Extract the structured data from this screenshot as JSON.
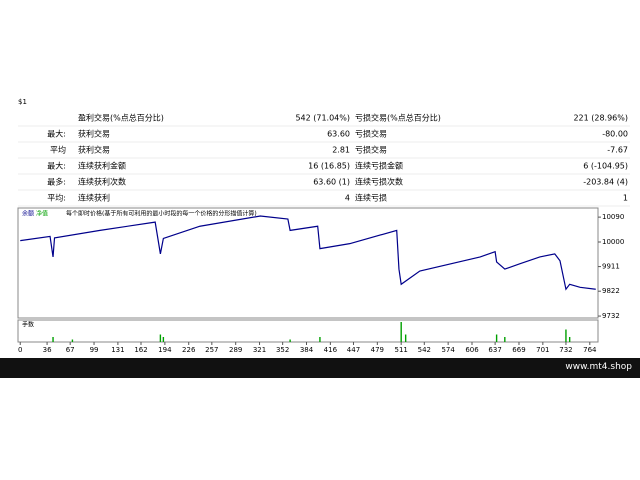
{
  "header": {
    "mark": "$1"
  },
  "stats": {
    "rows": [
      [
        "",
        "盈利交易(%点总百分比)",
        "542 (71.04%)",
        "亏损交易(%点总百分比)",
        "221 (28.96%)"
      ],
      [
        "最大:",
        "获利交易",
        "63.60",
        "亏损交易",
        "-80.00"
      ],
      [
        "平均",
        "获利交易",
        "2.81",
        "亏损交易",
        "-7.67"
      ],
      [
        "最大:",
        "连续获利金额",
        "16 (16.85)",
        "连续亏损金额",
        "6 (-104.95)"
      ],
      [
        "最多:",
        "连续获利次数",
        "63.60 (1)",
        "连续亏损次数",
        "-203.84 (4)"
      ],
      [
        "平均:",
        "连续获利",
        "4",
        "连续亏损",
        "1"
      ]
    ]
  },
  "chart": {
    "legend": [
      "余额",
      "净值",
      "每个即时价格(基于所有可利用的最小时段的每一个价格的分形描值计算)"
    ],
    "volume_label": "手数",
    "xlim": [
      -3,
      775
    ],
    "xticks": [
      0,
      36,
      67,
      99,
      131,
      162,
      194,
      226,
      257,
      289,
      321,
      352,
      384,
      416,
      447,
      479,
      511,
      542,
      574,
      606,
      637,
      669,
      701,
      732,
      764
    ],
    "ylim": [
      9725,
      10123
    ],
    "yticks": [
      10090,
      10000,
      9911,
      9822,
      9732
    ],
    "balance": {
      "color": "#00008b",
      "x": [
        0,
        40,
        44,
        46,
        107,
        181,
        188,
        192,
        241,
        322,
        359,
        362,
        399,
        402,
        442,
        505,
        508,
        511,
        536,
        617,
        637,
        639,
        650,
        670,
        697,
        717,
        724,
        732,
        737,
        751,
        772
      ],
      "values": [
        10005,
        10020,
        9946,
        10015,
        10042,
        10072,
        9957,
        10013,
        10057,
        10094,
        10083,
        10042,
        10057,
        9976,
        9994,
        10042,
        9902,
        9847,
        9895,
        9946,
        9965,
        9928,
        9902,
        9921,
        9946,
        9957,
        9932,
        9829,
        9847,
        9836,
        9829
      ]
    },
    "volume": {
      "color": "#00a000",
      "x": [
        44,
        70,
        188,
        192,
        362,
        402,
        511,
        517,
        639,
        650,
        732,
        737
      ],
      "values": [
        0.2,
        0.1,
        0.3,
        0.2,
        0.1,
        0.2,
        0.8,
        0.3,
        0.3,
        0.2,
        0.5,
        0.2
      ]
    }
  },
  "footer": {
    "site": "www.mt4.shop"
  }
}
